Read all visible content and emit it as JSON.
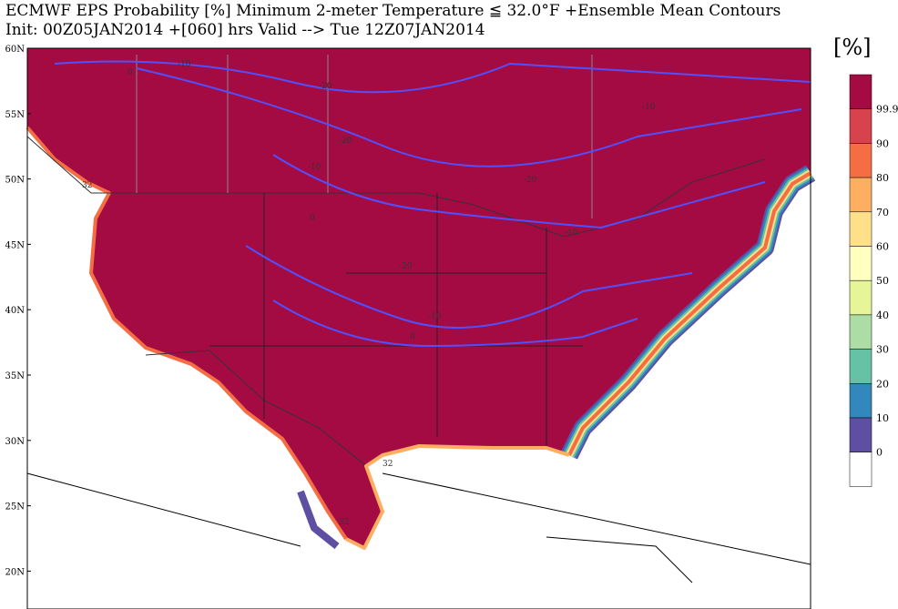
{
  "header": {
    "line1": "ECMWF EPS Probability [%] Minimum 2-meter Temperature ≦ 32.0°F   +Ensemble Mean Contours",
    "line2": "Init: 00Z05JAN2014   +[060] hrs Valid --> Tue 12Z07JAN2014"
  },
  "colorbar": {
    "unit": "[%]",
    "bins": [
      {
        "label": "99.9",
        "color": "#a50b43"
      },
      {
        "label": "90",
        "color": "#d8424d"
      },
      {
        "label": "80",
        "color": "#f46d43"
      },
      {
        "label": "70",
        "color": "#fdae61"
      },
      {
        "label": "60",
        "color": "#fee08b"
      },
      {
        "label": "50",
        "color": "#ffffbf"
      },
      {
        "label": "40",
        "color": "#e6f598"
      },
      {
        "label": "30",
        "color": "#abdda4"
      },
      {
        "label": "20",
        "color": "#66c2a5"
      },
      {
        "label": "10",
        "color": "#3288bd"
      },
      {
        "label": "0",
        "color": "#5e4fa2"
      }
    ]
  },
  "lat_labels": [
    "60N",
    "55N",
    "50N",
    "45N",
    "40N",
    "35N",
    "30N",
    "25N",
    "20N"
  ],
  "contour_labels": [
    "0",
    "-10",
    "-20",
    "-20",
    "-10",
    "-20",
    "-10",
    "0",
    "-20",
    "-10",
    "-10",
    "0",
    "32",
    "32",
    "32"
  ]
}
